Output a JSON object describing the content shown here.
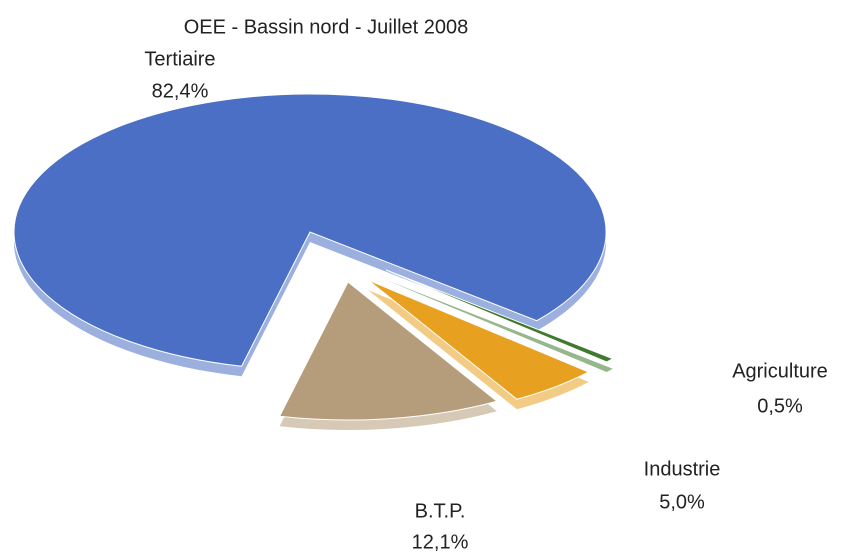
{
  "chart_data": {
    "type": "pie",
    "title": "OEE - Bassin nord - Juillet 2008",
    "categories": [
      "Tertiaire",
      "B.T.P.",
      "Industrie",
      "Agriculture"
    ],
    "values": [
      82.4,
      12.1,
      5.0,
      0.5
    ],
    "value_labels": [
      "82,4%",
      "12,1%",
      "5,0%",
      "0,5%"
    ],
    "colors": [
      "#4a6fc4",
      "#b59c7a",
      "#e8a020",
      "#3f7a2e"
    ]
  }
}
